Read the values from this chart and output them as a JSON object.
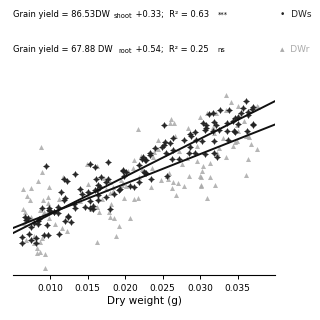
{
  "xlabel": "Dry weight (g)",
  "xlim": [
    0.005,
    0.04
  ],
  "ylim": [
    -0.2,
    4.2
  ],
  "xticks": [
    0.01,
    0.015,
    0.02,
    0.025,
    0.03,
    0.035
  ],
  "xtick_labels": [
    "0.010",
    "0.015",
    "0.020",
    "0.025",
    "0.030",
    "0.035"
  ],
  "shoot_slope": 86.53,
  "shoot_intercept": 0.33,
  "root_slope": 67.88,
  "root_intercept": 0.54,
  "shoot_color": "#222222",
  "root_color": "#aaaaaa",
  "line_color": "#111111",
  "bg_color": "#ffffff",
  "seed": 42,
  "n_shoot": 140,
  "n_root": 140,
  "noise_shoot": 0.3,
  "noise_root": 0.52
}
